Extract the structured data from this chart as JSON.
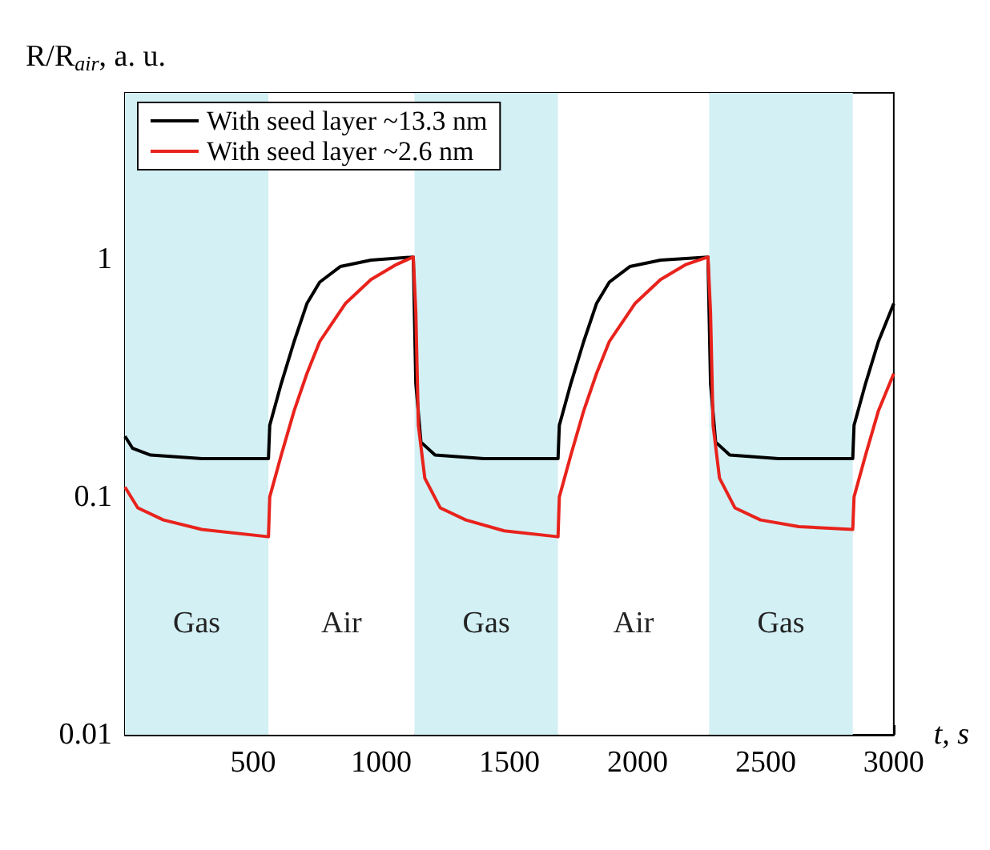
{
  "chart_data": {
    "type": "line",
    "ylabel": "R/R$_{air}$, a. u.",
    "xlabel": "t, s",
    "xlim": [
      0,
      3000
    ],
    "xticks": [
      500,
      1000,
      1500,
      2000,
      2500,
      3000
    ],
    "ylim": [
      0.01,
      5
    ],
    "yticks": [
      0.01,
      0.1,
      1
    ],
    "log": "y",
    "grid": false,
    "legend": "top left",
    "marker": "none",
    "line_style": "solid",
    "series": [
      {
        "name": "With seed layer ~13.3 nm",
        "color": "#000000",
        "x": [
          0,
          30,
          100,
          300,
          560,
          565,
          610,
          660,
          710,
          760,
          840,
          960,
          1125,
          1135,
          1155,
          1210,
          1400,
          1690,
          1695,
          1740,
          1790,
          1840,
          1890,
          1970,
          2090,
          2275,
          2285,
          2305,
          2360,
          2550,
          2840,
          2845,
          2890,
          2940,
          3000
        ],
        "values": [
          0.18,
          0.16,
          0.15,
          0.145,
          0.145,
          0.2,
          0.3,
          0.45,
          0.65,
          0.8,
          0.93,
          0.99,
          1.02,
          0.3,
          0.17,
          0.15,
          0.145,
          0.145,
          0.2,
          0.3,
          0.45,
          0.65,
          0.8,
          0.93,
          0.99,
          1.02,
          0.3,
          0.17,
          0.15,
          0.145,
          0.145,
          0.2,
          0.3,
          0.45,
          0.65
        ]
      },
      {
        "name": "With seed layer ~2.6 nm",
        "color": "#e8231c",
        "x": [
          0,
          50,
          150,
          300,
          560,
          565,
          610,
          660,
          710,
          760,
          860,
          960,
          1060,
          1125,
          1135,
          1145,
          1170,
          1230,
          1330,
          1480,
          1690,
          1695,
          1740,
          1790,
          1840,
          1890,
          1990,
          2090,
          2190,
          2275,
          2285,
          2295,
          2320,
          2380,
          2480,
          2630,
          2840,
          2845,
          2890,
          2940,
          3000
        ],
        "values": [
          0.11,
          0.09,
          0.08,
          0.073,
          0.068,
          0.1,
          0.15,
          0.23,
          0.33,
          0.45,
          0.65,
          0.82,
          0.95,
          1.02,
          0.6,
          0.2,
          0.12,
          0.09,
          0.08,
          0.072,
          0.068,
          0.1,
          0.15,
          0.23,
          0.33,
          0.45,
          0.65,
          0.82,
          0.95,
          1.02,
          0.6,
          0.2,
          0.12,
          0.09,
          0.08,
          0.075,
          0.073,
          0.1,
          0.15,
          0.23,
          0.33
        ]
      }
    ],
    "bands": [
      {
        "axis": "x",
        "from": 0,
        "to": 560,
        "color": "#d3f0f5",
        "label": "Gas"
      },
      {
        "axis": "x",
        "from": 560,
        "to": 1130,
        "color": "#ffffff",
        "label": "Air"
      },
      {
        "axis": "x",
        "from": 1130,
        "to": 1690,
        "color": "#d3f0f5",
        "label": "Gas"
      },
      {
        "axis": "x",
        "from": 1690,
        "to": 2280,
        "color": "#ffffff",
        "label": "Air"
      },
      {
        "axis": "x",
        "from": 2280,
        "to": 2840,
        "color": "#d3f0f5",
        "label": "Gas"
      }
    ]
  }
}
